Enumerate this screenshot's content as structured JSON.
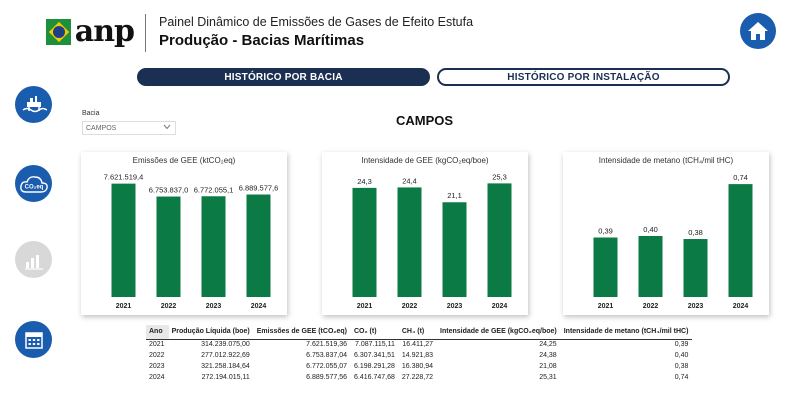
{
  "header": {
    "logo_text": "anp",
    "subtitle": "Painel Dinâmico de Emissões de Gases de Efeito Estufa",
    "title": "Produção - Bacias Marítimas"
  },
  "tabs": [
    {
      "label": "HISTÓRICO POR BACIA",
      "active": true
    },
    {
      "label": "HISTÓRICO POR INSTALAÇÃO",
      "active": false
    }
  ],
  "side_nav": {
    "co2_label": "CO₂eq"
  },
  "filter": {
    "label": "Bacia",
    "value": "CAMPOS"
  },
  "section_title": "CAMPOS",
  "colors": {
    "bar": "#0b7a45",
    "nav_blue": "#1a5cae",
    "tab_dark": "#1b2f52"
  },
  "chart_data": [
    {
      "type": "bar",
      "title": "Emissões de GEE (ktCO₂eq)",
      "categories": [
        "2021",
        "2022",
        "2023",
        "2024"
      ],
      "values": [
        7621.5194,
        6753.837,
        6772.0551,
        6889.5776
      ],
      "data_labels": [
        "7.621.519,4",
        "6.753.837,0",
        "6.772.055,1",
        "6.889.577,6"
      ],
      "ylim": [
        0,
        8000
      ]
    },
    {
      "type": "bar",
      "title": "Intensidade de GEE (kgCO₂eq/boe)",
      "categories": [
        "2021",
        "2022",
        "2023",
        "2024"
      ],
      "values": [
        24.3,
        24.4,
        21.1,
        25.3
      ],
      "data_labels": [
        "24,3",
        "24,4",
        "21,1",
        "25,3"
      ],
      "ylim": [
        0,
        26.5
      ]
    },
    {
      "type": "bar",
      "title": "Intensidade de metano (tCH₄/mil tHC)",
      "categories": [
        "2021",
        "2022",
        "2023",
        "2024"
      ],
      "values": [
        0.39,
        0.4,
        0.38,
        0.74
      ],
      "data_labels": [
        "0,39",
        "0,40",
        "0,38",
        "0,74"
      ],
      "ylim": [
        0,
        0.78
      ]
    }
  ],
  "table": {
    "headers": [
      "Ano",
      "Produção Líquida (boe)",
      "Emissões de GEE (tCO₂eq)",
      "CO₂ (t)",
      "CH₄ (t)",
      "Intensidade de GEE (kgCO₂eq/boe)",
      "Intensidade de metano (tCH₄/mil tHC)"
    ],
    "rows": [
      [
        "2021",
        "314.239.075,00",
        "7.621.519,36",
        "7.087.115,11",
        "16.411,27",
        "24,25",
        "0,39"
      ],
      [
        "2022",
        "277.012.922,69",
        "6.753.837,04",
        "6.307.341,51",
        "14.921,83",
        "24,38",
        "0,40"
      ],
      [
        "2023",
        "321.258.184,64",
        "6.772.055,07",
        "6.198.291,28",
        "16.380,94",
        "21,08",
        "0,38"
      ],
      [
        "2024",
        "272.194.015,11",
        "6.889.577,56",
        "6.416.747,68",
        "27.228,72",
        "25,31",
        "0,74"
      ]
    ]
  }
}
